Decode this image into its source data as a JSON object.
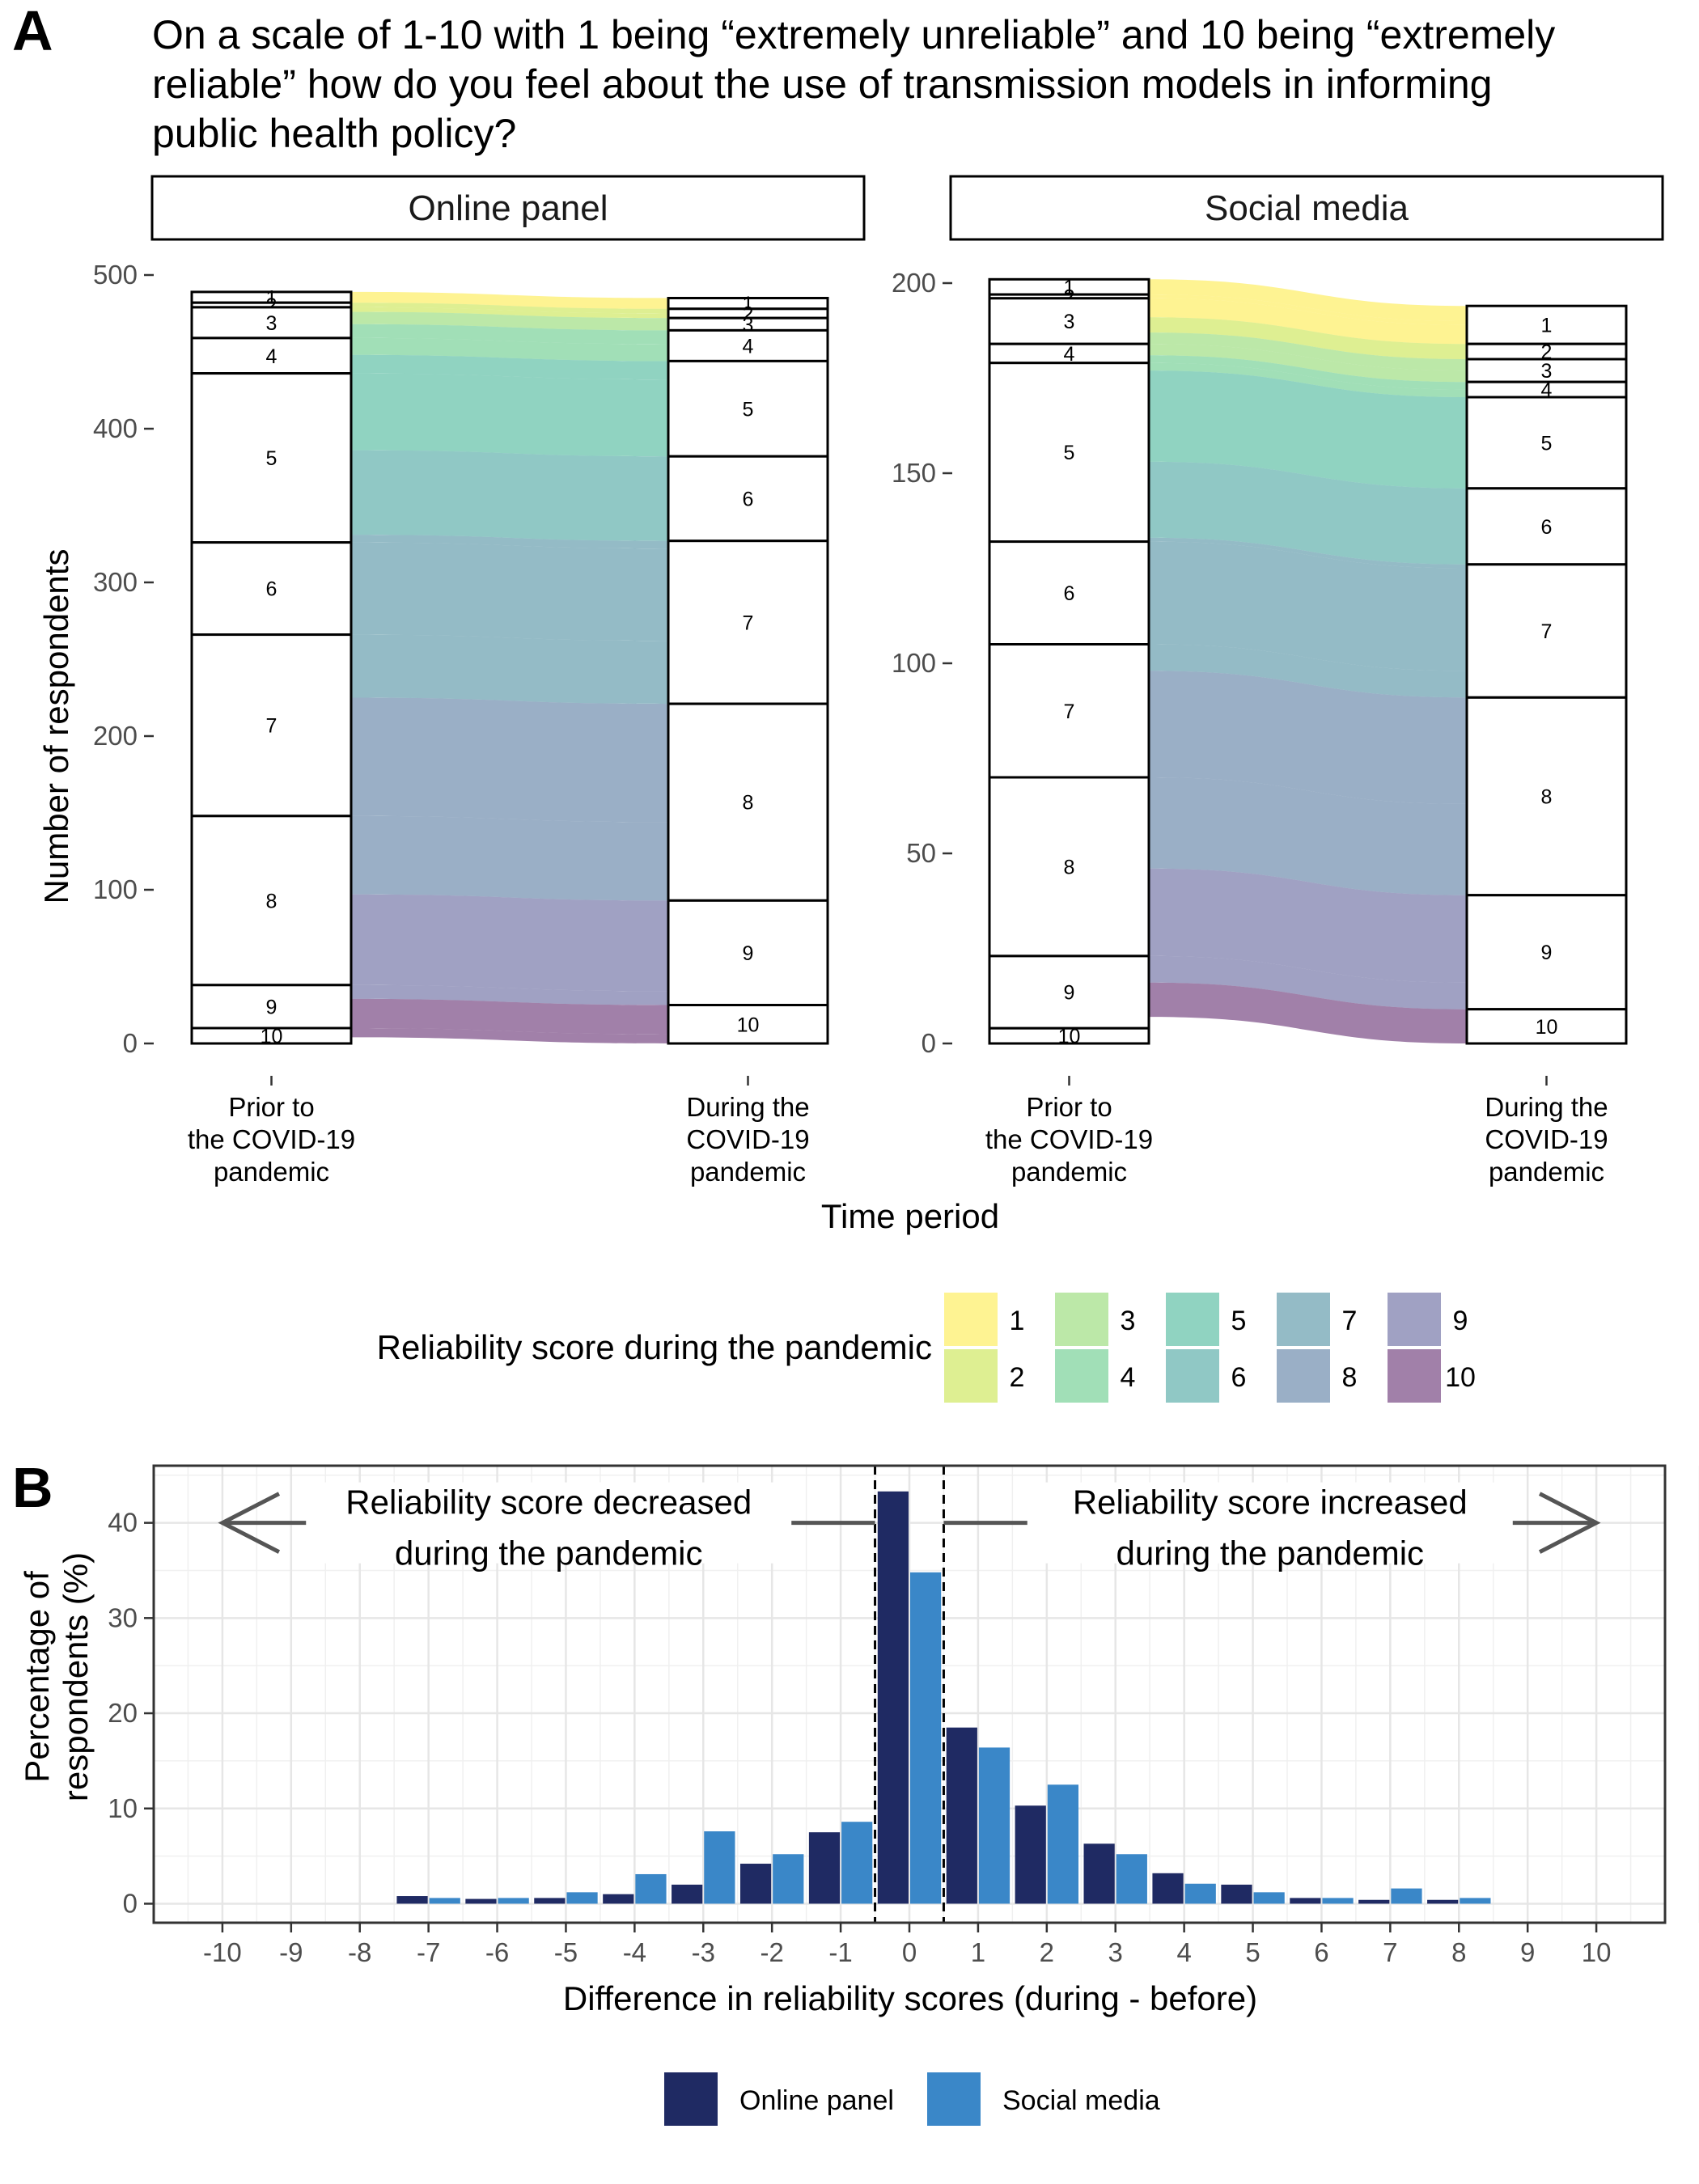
{
  "figure": {
    "panel_a_label": "A",
    "panel_b_label": "B",
    "title_lines": [
      "On a scale of 1-10 with 1 being “extremely unreliable” and 10 being “extremely",
      "reliable” how do you feel about the use of transmission models in informing",
      "public health policy?"
    ]
  },
  "chart_data": [
    {
      "type": "alluvial",
      "panel": "A",
      "facet": "Online panel",
      "x_categories": [
        [
          "Prior to",
          "the COVID-19",
          "pandemic"
        ],
        [
          "During the",
          "COVID-19",
          "pandemic"
        ]
      ],
      "xlabel": "Time period",
      "ylabel": "Number of respondents",
      "ylim": [
        0,
        500
      ],
      "yticks": [
        0,
        100,
        200,
        300,
        400,
        500
      ],
      "grid": false,
      "strata_levels": [
        1,
        2,
        3,
        4,
        5,
        6,
        7,
        8,
        9,
        10
      ],
      "prior_counts": [
        7,
        3,
        20,
        23,
        110,
        60,
        118,
        110,
        28,
        10
      ],
      "during_counts": [
        7,
        6,
        8,
        20,
        62,
        55,
        106,
        128,
        68,
        25
      ],
      "fill_by": "Reliability score during the pandemic"
    },
    {
      "type": "alluvial",
      "panel": "A",
      "facet": "Social media",
      "x_categories": [
        [
          "Prior to",
          "the COVID-19",
          "pandemic"
        ],
        [
          "During the",
          "COVID-19",
          "pandemic"
        ]
      ],
      "xlabel": "Time period",
      "ylabel": "Number of respondents",
      "ylim": [
        0,
        200
      ],
      "yticks": [
        0,
        50,
        100,
        150,
        200
      ],
      "grid": false,
      "strata_levels": [
        1,
        2,
        3,
        4,
        5,
        6,
        7,
        8,
        9,
        10
      ],
      "prior_counts": [
        4,
        1,
        12,
        5,
        47,
        27,
        35,
        47,
        19,
        4
      ],
      "during_counts": [
        10,
        4,
        6,
        4,
        24,
        20,
        35,
        52,
        30,
        9
      ],
      "fill_by": "Reliability score during the pandemic"
    },
    {
      "type": "bar",
      "panel": "B",
      "x": [
        -7,
        -6,
        -5,
        -4,
        -3,
        -2,
        -1,
        0,
        1,
        2,
        3,
        4,
        5,
        6,
        7,
        8
      ],
      "xticks": [
        -10,
        -9,
        -8,
        -7,
        -6,
        -5,
        -4,
        -3,
        -2,
        -1,
        0,
        1,
        2,
        3,
        4,
        5,
        6,
        7,
        8,
        9,
        10
      ],
      "series": [
        {
          "name": "Online panel",
          "color": "#1f2a63",
          "values": [
            0.8,
            0.5,
            0.6,
            1.0,
            2.0,
            4.2,
            7.5,
            43.3,
            18.5,
            10.3,
            6.3,
            3.2,
            2.0,
            0.6,
            0.4,
            0.4
          ]
        },
        {
          "name": "Social media",
          "color": "#3a87c8",
          "values": [
            0.6,
            0.6,
            1.2,
            3.1,
            7.6,
            5.2,
            8.6,
            34.8,
            16.4,
            12.5,
            5.2,
            2.1,
            1.2,
            0.6,
            1.6,
            0.6
          ]
        }
      ],
      "xlabel": "Difference in reliability scores (during - before)",
      "ylabel": "Percentage of respondents (%)",
      "ylabel_lines": [
        "Percentage of",
        "respondents (%)"
      ],
      "ylim": [
        0,
        46
      ],
      "yticks": [
        0,
        10,
        20,
        30,
        40
      ],
      "grid": true,
      "annotations": [
        [
          "Reliability score decreased",
          "during the pandemic"
        ],
        [
          "Reliability score increased",
          "during the pandemic"
        ]
      ],
      "legend_position": "bottom"
    }
  ],
  "legend_a": {
    "title": "Reliability score during the pandemic",
    "items": [
      {
        "label": "1",
        "color": "#fde725"
      },
      {
        "label": "2",
        "color": "#bddf26"
      },
      {
        "label": "3",
        "color": "#7ad151"
      },
      {
        "label": "4",
        "color": "#44bf70"
      },
      {
        "label": "5",
        "color": "#22a884"
      },
      {
        "label": "6",
        "color": "#21918c"
      },
      {
        "label": "7",
        "color": "#2a788e"
      },
      {
        "label": "8",
        "color": "#355f8d"
      },
      {
        "label": "9",
        "color": "#414487"
      },
      {
        "label": "10",
        "color": "#440154"
      }
    ],
    "opacity": 0.5
  }
}
